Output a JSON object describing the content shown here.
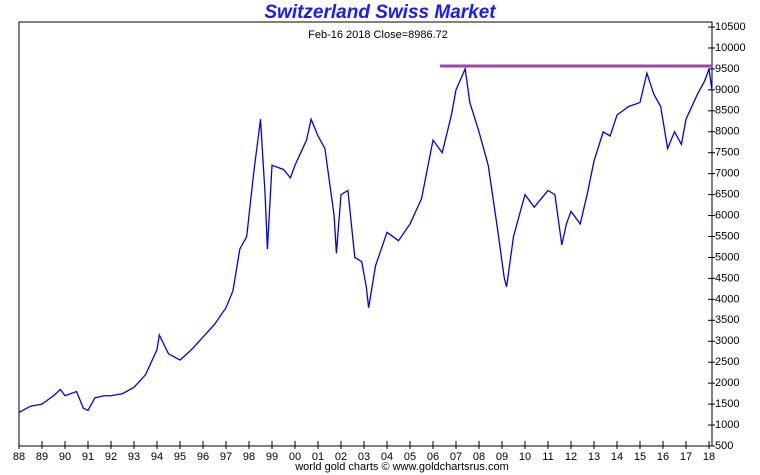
{
  "chart_data": {
    "type": "line",
    "title": "Switzerland Swiss Market",
    "subtitle": "Feb-16  2018  Close=8986.72",
    "footer": "world gold charts © www.goldchartsrus.com",
    "x": [
      1988.0,
      1988.5,
      1989.0,
      1989.5,
      1989.8,
      1990.0,
      1990.5,
      1990.8,
      1991.0,
      1991.3,
      1991.7,
      1992.0,
      1992.5,
      1993.0,
      1993.5,
      1994.0,
      1994.1,
      1994.5,
      1995.0,
      1995.5,
      1996.0,
      1996.5,
      1997.0,
      1997.3,
      1997.6,
      1997.9,
      1998.2,
      1998.5,
      1998.7,
      1998.8,
      1999.0,
      1999.5,
      1999.8,
      2000.0,
      2000.5,
      2000.7,
      2001.0,
      2001.3,
      2001.7,
      2001.8,
      2002.0,
      2002.3,
      2002.6,
      2002.9,
      2003.1,
      2003.2,
      2003.5,
      2004.0,
      2004.5,
      2005.0,
      2005.5,
      2006.0,
      2006.4,
      2006.8,
      2007.0,
      2007.4,
      2007.6,
      2008.0,
      2008.4,
      2008.8,
      2009.1,
      2009.2,
      2009.5,
      2010.0,
      2010.4,
      2010.7,
      2011.0,
      2011.3,
      2011.6,
      2011.8,
      2012.0,
      2012.4,
      2012.7,
      2013.0,
      2013.4,
      2013.7,
      2014.0,
      2014.5,
      2015.0,
      2015.3,
      2015.6,
      2015.9,
      2016.2,
      2016.5,
      2016.8,
      2017.0,
      2017.5,
      2017.8,
      2018.0,
      2018.13
    ],
    "series": [
      {
        "name": "Swiss Market",
        "color": "#0000ee",
        "values": [
          1300,
          1450,
          1500,
          1700,
          1850,
          1700,
          1800,
          1400,
          1350,
          1650,
          1700,
          1700,
          1750,
          1900,
          2200,
          2800,
          3150,
          2700,
          2550,
          2800,
          3100,
          3400,
          3800,
          4200,
          5200,
          5500,
          7000,
          8300,
          6500,
          5200,
          7200,
          7100,
          6900,
          7200,
          7800,
          8300,
          7900,
          7600,
          6000,
          5100,
          6500,
          6600,
          5000,
          4900,
          4300,
          3800,
          4800,
          5600,
          5400,
          5800,
          6400,
          7800,
          7500,
          8400,
          9000,
          9500,
          8700,
          8000,
          7200,
          5700,
          4500,
          4300,
          5500,
          6500,
          6200,
          6400,
          6600,
          6500,
          5300,
          5800,
          6100,
          5800,
          6500,
          7300,
          8000,
          7900,
          8400,
          8600,
          8700,
          9400,
          8900,
          8600,
          7600,
          8000,
          7700,
          8300,
          8900,
          9200,
          9500,
          8987
        ]
      }
    ],
    "reference_line": {
      "value": 9570,
      "x": [
        2006.3,
        2018.13
      ],
      "color": "#a044a8"
    },
    "xlim": [
      1988,
      2018.13
    ],
    "ylim": [
      500,
      10620
    ],
    "xticks": [
      {
        "value": 1988,
        "label": "88"
      },
      {
        "value": 1989,
        "label": "89"
      },
      {
        "value": 1990,
        "label": "90"
      },
      {
        "value": 1991,
        "label": "91"
      },
      {
        "value": 1992,
        "label": "92"
      },
      {
        "value": 1993,
        "label": "93"
      },
      {
        "value": 1994,
        "label": "94"
      },
      {
        "value": 1995,
        "label": "95"
      },
      {
        "value": 1996,
        "label": "96"
      },
      {
        "value": 1997,
        "label": "97"
      },
      {
        "value": 1998,
        "label": "98"
      },
      {
        "value": 1999,
        "label": "99"
      },
      {
        "value": 2000,
        "label": "00"
      },
      {
        "value": 2001,
        "label": "01"
      },
      {
        "value": 2002,
        "label": "02"
      },
      {
        "value": 2003,
        "label": "03"
      },
      {
        "value": 2004,
        "label": "04"
      },
      {
        "value": 2005,
        "label": "05"
      },
      {
        "value": 2006,
        "label": "06"
      },
      {
        "value": 2007,
        "label": "07"
      },
      {
        "value": 2008,
        "label": "08"
      },
      {
        "value": 2009,
        "label": "09"
      },
      {
        "value": 2010,
        "label": "10"
      },
      {
        "value": 2011,
        "label": "11"
      },
      {
        "value": 2012,
        "label": "12"
      },
      {
        "value": 2013,
        "label": "13"
      },
      {
        "value": 2014,
        "label": "14"
      },
      {
        "value": 2015,
        "label": "15"
      },
      {
        "value": 2016,
        "label": "16"
      },
      {
        "value": 2017,
        "label": "17"
      },
      {
        "value": 2018,
        "label": "18"
      }
    ],
    "yticks": [
      500,
      1000,
      1500,
      2000,
      2500,
      3000,
      3500,
      4000,
      4500,
      5000,
      5500,
      6000,
      6500,
      7000,
      7500,
      8000,
      8500,
      9000,
      9500,
      10000,
      10500
    ]
  }
}
